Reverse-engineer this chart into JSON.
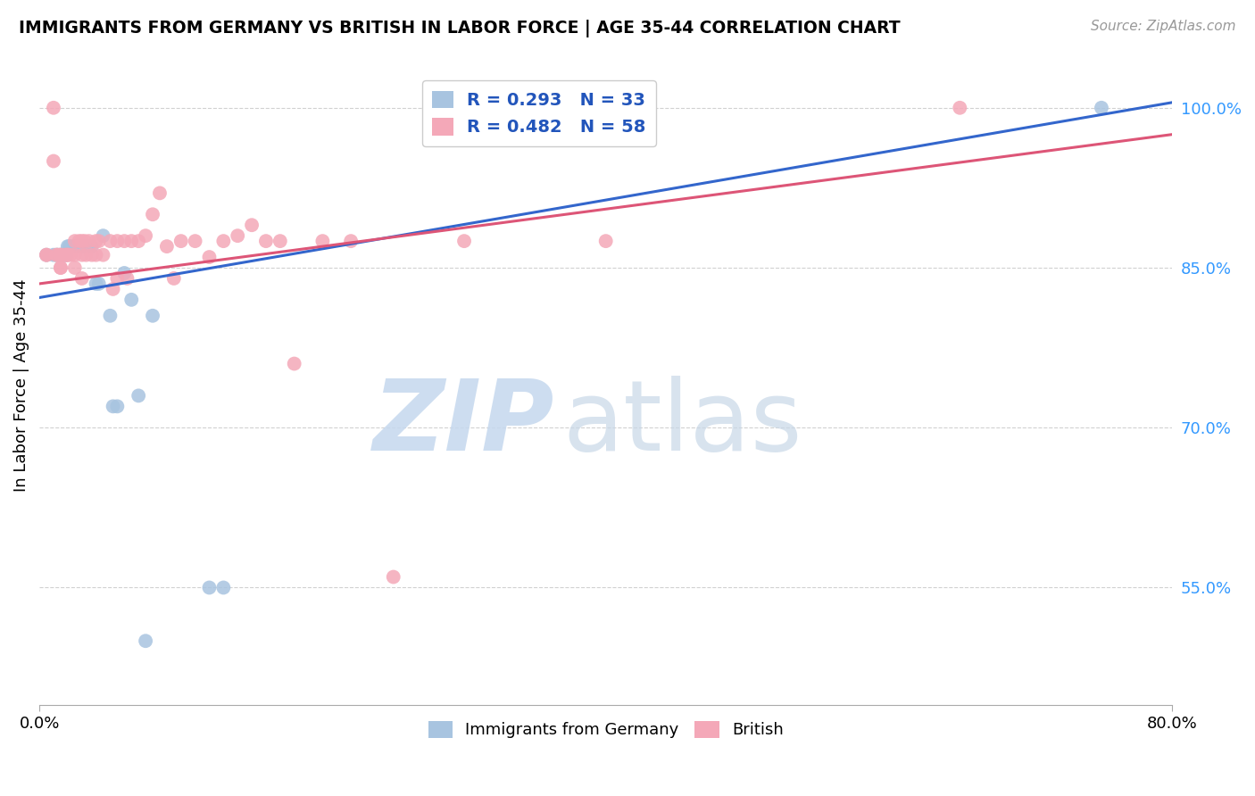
{
  "title": "IMMIGRANTS FROM GERMANY VS BRITISH IN LABOR FORCE | AGE 35-44 CORRELATION CHART",
  "source": "Source: ZipAtlas.com",
  "ylabel": "In Labor Force | Age 35-44",
  "xmin": 0.0,
  "xmax": 0.8,
  "ymin": 0.44,
  "ymax": 1.04,
  "yticks": [
    0.55,
    0.7,
    0.85,
    1.0
  ],
  "ytick_labels": [
    "55.0%",
    "70.0%",
    "85.0%",
    "100.0%"
  ],
  "germany_R": 0.293,
  "germany_N": 33,
  "british_R": 0.482,
  "british_N": 58,
  "germany_color": "#a8c4e0",
  "british_color": "#f4a8b8",
  "germany_line_color": "#3366cc",
  "british_line_color": "#dd5577",
  "legend_label_germany": "Immigrants from Germany",
  "legend_label_british": "British",
  "germany_line_x0": 0.0,
  "germany_line_y0": 0.822,
  "germany_line_x1": 0.8,
  "germany_line_y1": 1.005,
  "british_line_x0": 0.0,
  "british_line_y0": 0.835,
  "british_line_x1": 0.8,
  "british_line_y1": 0.975,
  "germany_x": [
    0.005,
    0.01,
    0.012,
    0.013,
    0.015,
    0.016,
    0.018,
    0.019,
    0.02,
    0.021,
    0.022,
    0.025,
    0.026,
    0.028,
    0.03,
    0.032,
    0.033,
    0.035,
    0.037,
    0.04,
    0.042,
    0.045,
    0.05,
    0.052,
    0.055,
    0.06,
    0.065,
    0.07,
    0.075,
    0.08,
    0.12,
    0.13,
    0.75
  ],
  "germany_y": [
    0.862,
    0.862,
    0.862,
    0.862,
    0.862,
    0.862,
    0.862,
    0.862,
    0.87,
    0.87,
    0.87,
    0.87,
    0.87,
    0.87,
    0.87,
    0.87,
    0.87,
    0.87,
    0.87,
    0.835,
    0.835,
    0.88,
    0.805,
    0.72,
    0.72,
    0.845,
    0.82,
    0.73,
    0.5,
    0.805,
    0.55,
    0.55,
    1.0
  ],
  "british_x": [
    0.005,
    0.005,
    0.01,
    0.01,
    0.012,
    0.013,
    0.015,
    0.015,
    0.015,
    0.015,
    0.018,
    0.019,
    0.02,
    0.02,
    0.022,
    0.025,
    0.025,
    0.025,
    0.028,
    0.03,
    0.03,
    0.03,
    0.032,
    0.033,
    0.035,
    0.037,
    0.04,
    0.04,
    0.042,
    0.045,
    0.05,
    0.052,
    0.055,
    0.055,
    0.06,
    0.062,
    0.065,
    0.07,
    0.075,
    0.08,
    0.085,
    0.09,
    0.095,
    0.1,
    0.11,
    0.12,
    0.13,
    0.14,
    0.15,
    0.16,
    0.17,
    0.18,
    0.2,
    0.22,
    0.25,
    0.3,
    0.4,
    0.65
  ],
  "british_y": [
    0.862,
    0.862,
    1.0,
    0.95,
    0.862,
    0.862,
    0.862,
    0.862,
    0.85,
    0.85,
    0.862,
    0.862,
    0.862,
    0.862,
    0.862,
    0.875,
    0.862,
    0.85,
    0.875,
    0.875,
    0.862,
    0.84,
    0.875,
    0.862,
    0.875,
    0.862,
    0.875,
    0.862,
    0.875,
    0.862,
    0.875,
    0.83,
    0.875,
    0.84,
    0.875,
    0.84,
    0.875,
    0.875,
    0.88,
    0.9,
    0.92,
    0.87,
    0.84,
    0.875,
    0.875,
    0.86,
    0.875,
    0.88,
    0.89,
    0.875,
    0.875,
    0.76,
    0.875,
    0.875,
    0.56,
    0.875,
    0.875,
    1.0
  ]
}
